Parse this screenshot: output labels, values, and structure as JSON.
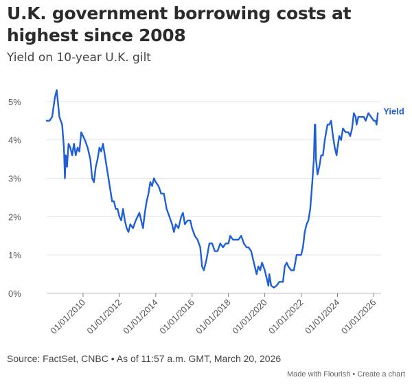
{
  "header": {
    "title": "U.K. government borrowing costs at highest since 2008",
    "subtitle": "Yield on 10-year U.K. gilt"
  },
  "footer": {
    "source": "Source: FactSet, CNBC • As of 11:57 a.m. GMT, March 20, 2026",
    "made_with": "Made with Flourish",
    "separator": " • ",
    "create_chart": "Create a chart"
  },
  "colors": {
    "line": "#1f5fd6",
    "grid": "#e4e4e4",
    "axis": "#777777"
  },
  "chart_data": {
    "type": "line",
    "title": "U.K. government borrowing costs at highest since 2008",
    "subtitle": "Yield on 10-year U.K. gilt",
    "xlabel": "",
    "ylabel": "",
    "xlim": [
      2008.0,
      2026.4
    ],
    "ylim": [
      0,
      5.5
    ],
    "grid": true,
    "y_ticks": [
      0,
      1,
      2,
      3,
      4,
      5
    ],
    "y_tick_labels": [
      "0%",
      "1%",
      "2%",
      "3%",
      "4%",
      "5%"
    ],
    "x_ticks": [
      2010,
      2012,
      2014,
      2016,
      2018,
      2020,
      2022,
      2024,
      2026
    ],
    "x_tick_labels": [
      "01/01/2010",
      "01/01/2012",
      "01/01/2014",
      "01/01/2016",
      "01/01/2018",
      "01/01/2020",
      "01/01/2022",
      "01/01/2024",
      "01/01/2026"
    ],
    "series": [
      {
        "name": "Yield",
        "x": [
          2008.0,
          2008.15,
          2008.3,
          2008.45,
          2008.55,
          2008.7,
          2008.85,
          2008.95,
          2009.0,
          2009.05,
          2009.12,
          2009.2,
          2009.3,
          2009.4,
          2009.5,
          2009.6,
          2009.7,
          2009.8,
          2009.9,
          2010.0,
          2010.1,
          2010.25,
          2010.4,
          2010.5,
          2010.6,
          2010.7,
          2010.8,
          2010.9,
          2011.0,
          2011.1,
          2011.2,
          2011.3,
          2011.4,
          2011.5,
          2011.6,
          2011.7,
          2011.8,
          2011.9,
          2012.0,
          2012.1,
          2012.2,
          2012.3,
          2012.4,
          2012.5,
          2012.6,
          2012.75,
          2012.9,
          2013.0,
          2013.1,
          2013.2,
          2013.3,
          2013.4,
          2013.5,
          2013.6,
          2013.7,
          2013.8,
          2013.9,
          2014.0,
          2014.15,
          2014.3,
          2014.45,
          2014.6,
          2014.75,
          2014.9,
          2015.0,
          2015.1,
          2015.25,
          2015.4,
          2015.5,
          2015.6,
          2015.75,
          2015.9,
          2016.0,
          2016.15,
          2016.3,
          2016.45,
          2016.55,
          2016.65,
          2016.8,
          2016.95,
          2017.1,
          2017.25,
          2017.4,
          2017.55,
          2017.7,
          2017.85,
          2018.0,
          2018.1,
          2018.25,
          2018.4,
          2018.55,
          2018.7,
          2018.85,
          2019.0,
          2019.1,
          2019.25,
          2019.4,
          2019.55,
          2019.65,
          2019.75,
          2019.85,
          2020.0,
          2020.1,
          2020.2,
          2020.25,
          2020.35,
          2020.5,
          2020.65,
          2020.8,
          2020.95,
          2021.0,
          2021.1,
          2021.2,
          2021.3,
          2021.45,
          2021.6,
          2021.75,
          2021.9,
          2022.0,
          2022.1,
          2022.2,
          2022.3,
          2022.4,
          2022.5,
          2022.6,
          2022.7,
          2022.75,
          2022.78,
          2022.82,
          2022.9,
          2023.0,
          2023.1,
          2023.2,
          2023.3,
          2023.45,
          2023.55,
          2023.65,
          2023.75,
          2023.85,
          2023.95,
          2024.0,
          2024.1,
          2024.2,
          2024.3,
          2024.45,
          2024.6,
          2024.7,
          2024.8,
          2024.9,
          2025.0,
          2025.05,
          2025.15,
          2025.3,
          2025.45,
          2025.55,
          2025.7,
          2025.85,
          2026.0,
          2026.1,
          2026.15,
          2026.22
        ],
        "y": [
          4.5,
          4.5,
          4.6,
          5.1,
          5.3,
          4.6,
          4.4,
          3.8,
          3.0,
          3.6,
          3.3,
          3.9,
          3.8,
          3.6,
          3.9,
          3.6,
          3.8,
          3.7,
          4.2,
          4.1,
          4.0,
          3.8,
          3.5,
          3.0,
          2.9,
          3.3,
          3.5,
          3.8,
          3.7,
          3.9,
          3.6,
          3.3,
          3.0,
          2.7,
          2.4,
          2.4,
          2.2,
          2.2,
          2.0,
          1.9,
          2.2,
          1.9,
          1.7,
          1.6,
          1.8,
          1.7,
          1.9,
          2.0,
          2.1,
          1.9,
          1.7,
          2.1,
          2.4,
          2.6,
          2.9,
          2.8,
          3.0,
          2.9,
          2.8,
          2.6,
          2.6,
          2.2,
          2.0,
          1.8,
          1.6,
          1.8,
          1.7,
          2.0,
          2.1,
          1.8,
          1.9,
          1.9,
          1.7,
          1.5,
          1.4,
          1.2,
          0.7,
          0.6,
          0.9,
          1.3,
          1.3,
          1.1,
          1.1,
          1.3,
          1.2,
          1.3,
          1.3,
          1.5,
          1.4,
          1.4,
          1.4,
          1.5,
          1.3,
          1.2,
          1.2,
          1.1,
          0.8,
          0.5,
          0.7,
          0.6,
          0.8,
          0.6,
          0.4,
          0.2,
          0.5,
          0.2,
          0.15,
          0.2,
          0.3,
          0.3,
          0.3,
          0.7,
          0.8,
          0.7,
          0.6,
          0.6,
          1.0,
          1.0,
          1.0,
          1.2,
          1.6,
          1.8,
          1.9,
          2.2,
          2.8,
          3.5,
          4.4,
          4.4,
          3.5,
          3.1,
          3.3,
          3.6,
          3.6,
          4.0,
          4.4,
          4.4,
          4.5,
          4.1,
          3.8,
          3.6,
          3.8,
          4.1,
          4.0,
          4.3,
          4.2,
          4.2,
          4.1,
          4.3,
          4.7,
          4.6,
          4.4,
          4.6,
          4.6,
          4.6,
          4.5,
          4.7,
          4.6,
          4.5,
          4.5,
          4.4,
          4.7
        ]
      }
    ],
    "annotations": [
      {
        "text": "Yield",
        "series": "Yield",
        "position": "end-of-line"
      }
    ]
  }
}
